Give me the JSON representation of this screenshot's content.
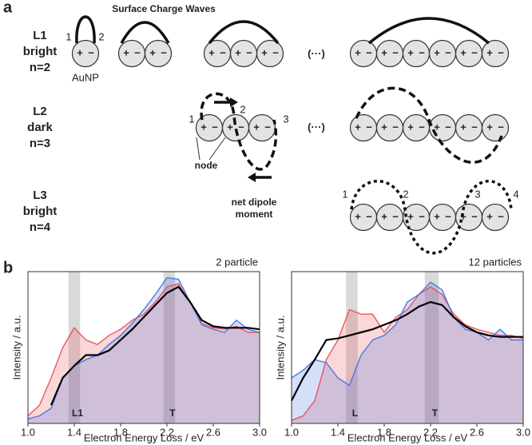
{
  "panel_a": {
    "label": "a",
    "title": "Surface Charge Waves",
    "rows": [
      [
        "L1",
        "bright",
        "n=2"
      ],
      [
        "L2",
        "dark",
        "n=3"
      ],
      [
        "L3",
        "bright",
        "n=4"
      ]
    ],
    "particle": "AuNP",
    "node": "node",
    "dipole": [
      "net dipole",
      "moment"
    ],
    "ellipsis": "(···)",
    "charges": [
      "+",
      "−"
    ],
    "numbers": [
      "1",
      "2",
      "3",
      "4"
    ]
  },
  "panel_b": {
    "label": "b"
  },
  "chart_data": [
    {
      "type": "line",
      "annotation": "2 particle",
      "xlabel": "Electron Energy Loss / eV",
      "ylabel": "Intensity / a.u.",
      "x": [
        1,
        1.1,
        1.2,
        1.3,
        1.4,
        1.5,
        1.6,
        1.7,
        1.8,
        1.9,
        2,
        2.1,
        2.2,
        2.3,
        2.4,
        2.5,
        2.6,
        2.7,
        2.8,
        2.9,
        3
      ],
      "xlim": [
        1,
        3
      ],
      "xticks": [
        {
          "value": 1,
          "label": "1.0"
        },
        1.4,
        1.8,
        2.2,
        2.6,
        {
          "value": 3,
          "label": "3.0"
        }
      ],
      "ylim": [
        0,
        1
      ],
      "series": [
        {
          "name": "red",
          "color": "#e8474f",
          "values": [
            0.05,
            0.12,
            0.3,
            0.5,
            0.63,
            0.55,
            0.52,
            0.58,
            0.62,
            0.68,
            0.72,
            0.8,
            0.9,
            0.92,
            0.8,
            0.66,
            0.63,
            0.62,
            0.64,
            0.6,
            0.6
          ]
        },
        {
          "name": "blue",
          "color": "#3a6fe0",
          "values": [
            0.03,
            0.05,
            0.1,
            0.3,
            0.38,
            0.42,
            0.45,
            0.52,
            0.58,
            0.66,
            0.75,
            0.85,
            0.96,
            0.95,
            0.8,
            0.65,
            0.62,
            0.6,
            0.68,
            0.62,
            0.6
          ]
        },
        {
          "name": "black",
          "color": "#000000",
          "values": [
            null,
            null,
            0.12,
            0.3,
            0.38,
            0.45,
            0.45,
            0.48,
            0.55,
            0.62,
            0.7,
            0.78,
            0.86,
            0.9,
            0.8,
            0.68,
            0.64,
            0.63,
            0.63,
            0.63,
            0.62
          ]
        }
      ],
      "bands": [
        {
          "x": [
            1.35,
            1.45
          ],
          "label": "L1"
        },
        {
          "x": [
            2.17,
            2.27
          ],
          "label": "T"
        }
      ],
      "band_color": "#cfcfcf"
    },
    {
      "type": "line",
      "annotation": "12 particles",
      "xlabel": "Electron Energy Loss / eV",
      "ylabel": "Intensity / a.u.",
      "x": [
        1,
        1.1,
        1.2,
        1.3,
        1.4,
        1.5,
        1.6,
        1.7,
        1.8,
        1.9,
        2,
        2.1,
        2.2,
        2.3,
        2.4,
        2.5,
        2.6,
        2.7,
        2.8,
        2.9,
        3
      ],
      "xlim": [
        1,
        3
      ],
      "xticks": [
        {
          "value": 1,
          "label": "1.0"
        },
        1.4,
        1.8,
        2.2,
        2.6,
        {
          "value": 3,
          "label": "3.0"
        }
      ],
      "ylim": [
        0,
        1
      ],
      "series": [
        {
          "name": "red",
          "color": "#e8474f",
          "values": [
            0.02,
            0.05,
            0.15,
            0.42,
            0.55,
            0.75,
            0.72,
            0.72,
            0.6,
            0.7,
            0.75,
            0.85,
            0.9,
            0.85,
            0.72,
            0.65,
            0.62,
            0.6,
            0.58,
            0.58,
            0.56
          ]
        },
        {
          "name": "blue",
          "color": "#3a6fe0",
          "values": [
            0.3,
            0.35,
            0.42,
            0.4,
            0.3,
            0.25,
            0.45,
            0.55,
            0.58,
            0.65,
            0.8,
            0.85,
            0.93,
            0.88,
            0.7,
            0.62,
            0.6,
            0.55,
            0.62,
            0.55,
            0.55
          ]
        },
        {
          "name": "black",
          "color": "#000000",
          "values": [
            0.15,
            0.3,
            0.42,
            0.55,
            0.56,
            0.58,
            0.6,
            0.62,
            0.65,
            0.68,
            0.72,
            0.77,
            0.8,
            0.78,
            0.7,
            0.64,
            0.6,
            0.58,
            0.57,
            0.57,
            0.57
          ]
        }
      ],
      "bands": [
        {
          "x": [
            1.47,
            1.57
          ],
          "label": "L"
        },
        {
          "x": [
            2.15,
            2.27
          ],
          "label": "T"
        }
      ],
      "band_color": "#cfcfcf"
    }
  ]
}
